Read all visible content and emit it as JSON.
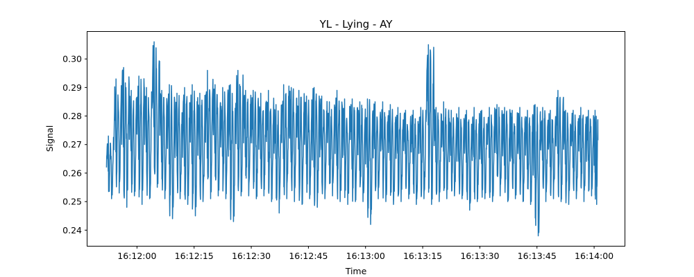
{
  "chart_data": {
    "type": "line",
    "title": "YL - Lying - AY",
    "xlabel": "Time",
    "ylabel": "Signal",
    "x_range": [
      "16:11:52",
      "16:14:01"
    ],
    "xlim": [
      "16:11:47",
      "16:14:08"
    ],
    "ylim": [
      0.2345,
      0.3095
    ],
    "x_ticks": [
      "16:12:00",
      "16:12:15",
      "16:12:30",
      "16:12:45",
      "16:13:00",
      "16:13:15",
      "16:13:30",
      "16:13:45",
      "16:14:00"
    ],
    "y_ticks": [
      "0.24",
      "0.25",
      "0.26",
      "0.27",
      "0.28",
      "0.29",
      "0.30"
    ],
    "grid": false,
    "legend": "none",
    "series": [
      {
        "color": "#1f77b4",
        "x": [
          "16:11:52",
          "16:11:54",
          "16:11:56",
          "16:11:58",
          "16:12:00",
          "16:12:02",
          "16:12:04",
          "16:12:06",
          "16:12:08",
          "16:12:10",
          "16:12:12",
          "16:12:14",
          "16:12:16",
          "16:12:18",
          "16:12:20",
          "16:12:22",
          "16:12:24",
          "16:12:26",
          "16:12:28",
          "16:12:30",
          "16:12:32",
          "16:12:34",
          "16:12:36",
          "16:12:38",
          "16:12:40",
          "16:12:42",
          "16:12:44",
          "16:12:46",
          "16:12:48",
          "16:12:50",
          "16:12:52",
          "16:12:54",
          "16:12:56",
          "16:12:58",
          "16:13:00",
          "16:13:02",
          "16:13:04",
          "16:13:06",
          "16:13:08",
          "16:13:10",
          "16:13:12",
          "16:13:14",
          "16:13:16",
          "16:13:18",
          "16:13:20",
          "16:13:22",
          "16:13:24",
          "16:13:26",
          "16:13:28",
          "16:13:30",
          "16:13:32",
          "16:13:34",
          "16:13:36",
          "16:13:38",
          "16:13:40",
          "16:13:42",
          "16:13:44",
          "16:13:46",
          "16:13:48",
          "16:13:50",
          "16:13:52",
          "16:13:54",
          "16:13:56",
          "16:13:58",
          "16:14:00",
          "16:14:01"
        ],
        "max": [
          0.273,
          0.293,
          0.297,
          0.289,
          0.294,
          0.29,
          0.306,
          0.289,
          0.291,
          0.288,
          0.29,
          0.291,
          0.288,
          0.296,
          0.291,
          0.29,
          0.291,
          0.296,
          0.289,
          0.289,
          0.288,
          0.289,
          0.284,
          0.291,
          0.29,
          0.289,
          0.287,
          0.29,
          0.287,
          0.285,
          0.289,
          0.286,
          0.286,
          0.285,
          0.286,
          0.285,
          0.285,
          0.284,
          0.283,
          0.282,
          0.282,
          0.283,
          0.305,
          0.283,
          0.285,
          0.282,
          0.283,
          0.282,
          0.283,
          0.282,
          0.283,
          0.284,
          0.283,
          0.282,
          0.283,
          0.282,
          0.284,
          0.283,
          0.282,
          0.289,
          0.282,
          0.282,
          0.283,
          0.282,
          0.282,
          0.283
        ],
        "min": [
          0.251,
          0.253,
          0.248,
          0.252,
          0.249,
          0.251,
          0.255,
          0.251,
          0.244,
          0.251,
          0.249,
          0.245,
          0.25,
          0.251,
          0.252,
          0.251,
          0.243,
          0.252,
          0.252,
          0.251,
          0.252,
          0.25,
          0.246,
          0.251,
          0.25,
          0.249,
          0.251,
          0.248,
          0.251,
          0.252,
          0.25,
          0.249,
          0.25,
          0.25,
          0.242,
          0.251,
          0.25,
          0.249,
          0.25,
          0.251,
          0.249,
          0.251,
          0.249,
          0.25,
          0.251,
          0.252,
          0.251,
          0.247,
          0.25,
          0.251,
          0.25,
          0.252,
          0.25,
          0.251,
          0.25,
          0.249,
          0.238,
          0.25,
          0.251,
          0.25,
          0.249,
          0.251,
          0.25,
          0.252,
          0.249,
          0.26
        ]
      }
    ]
  }
}
